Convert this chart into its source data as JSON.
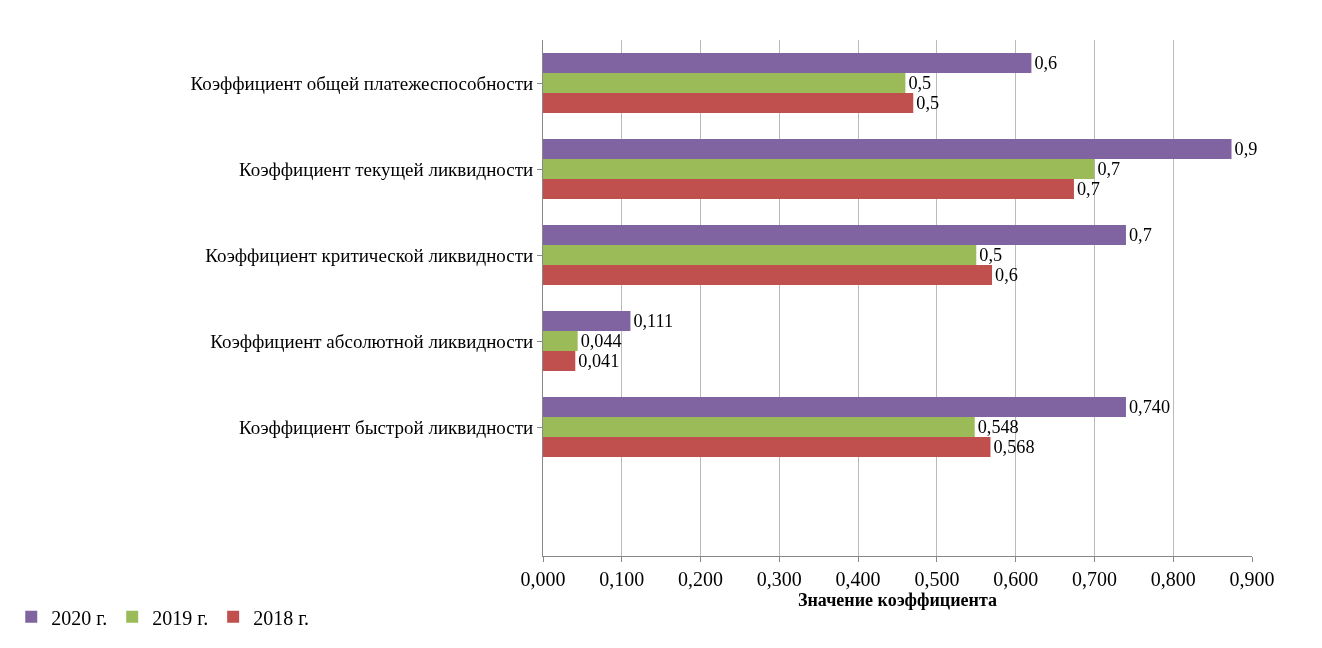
{
  "chart_data": {
    "type": "bar",
    "orientation": "horizontal",
    "xlabel": "Значение коэффициента",
    "categories": [
      "Коэффициент общей платежеспособности",
      "Коэффициент текущей ликвидности",
      "Коэффициент критической ликвидности",
      "Коэффициент абсолютной ликвидности",
      "Коэффициент быстрой ликвидности",
      null
    ],
    "series": [
      {
        "name": "2020 г.",
        "color": "#8064a2",
        "values": [
          0.62,
          0.874,
          0.74,
          0.111,
          0.74,
          null
        ],
        "value_labels": [
          "0,6",
          "0,9",
          "0,7",
          "0,111",
          "0,740",
          null
        ]
      },
      {
        "name": "2019 г.",
        "color": "#9bbb59",
        "values": [
          0.46,
          0.7,
          0.55,
          0.044,
          0.548,
          null
        ],
        "value_labels": [
          "0,5",
          "0,7",
          "0,5",
          "0,044",
          "0,548",
          null
        ]
      },
      {
        "name": "2018 г.",
        "color": "#c0504d",
        "values": [
          0.47,
          0.674,
          0.57,
          0.041,
          0.568,
          null
        ],
        "value_labels": [
          "0,5",
          "0,7",
          "0,6",
          "0,041",
          "0,568",
          null
        ]
      }
    ],
    "xlim": [
      0,
      0.9
    ],
    "xticks": [
      {
        "value": 0,
        "label": "0,000"
      },
      {
        "value": 0.1,
        "label": "0,100"
      },
      {
        "value": 0.2,
        "label": "0,200"
      },
      {
        "value": 0.3,
        "label": "0,300"
      },
      {
        "value": 0.4,
        "label": "0,400"
      },
      {
        "value": 0.5,
        "label": "0,500"
      },
      {
        "value": 0.6,
        "label": "0,600"
      },
      {
        "value": 0.7,
        "label": "0,700"
      },
      {
        "value": 0.8,
        "label": "0,800"
      },
      {
        "value": 0.9,
        "label": "0,900"
      }
    ],
    "grid": "x",
    "legend": "bottom left"
  }
}
